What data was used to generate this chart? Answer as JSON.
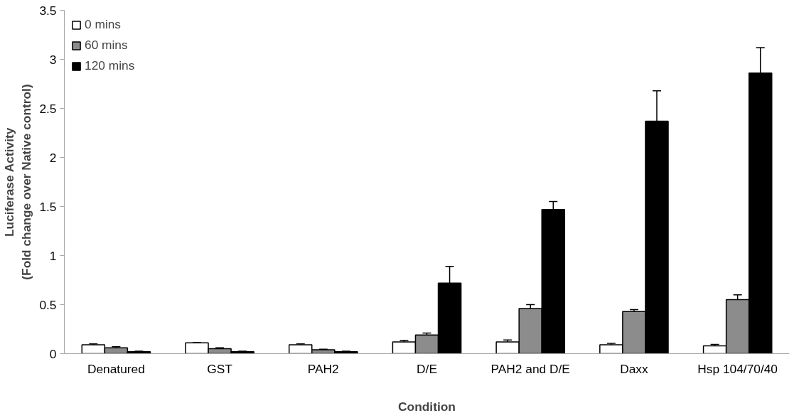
{
  "chart_data": {
    "type": "bar",
    "xlabel": "Condition",
    "ylabel": "Luciferase Activity\n(Fold change over Native control)",
    "categories": [
      "Denatured",
      "GST",
      "PAH2",
      "D/E",
      "PAH2 and D/E",
      "Daxx",
      "Hsp 104/70/40"
    ],
    "series": [
      {
        "name": "0 mins",
        "color": "#ffffff",
        "values": [
          0.09,
          0.11,
          0.09,
          0.12,
          0.12,
          0.09,
          0.08
        ],
        "errors": [
          0.01,
          0.005,
          0.01,
          0.015,
          0.02,
          0.015,
          0.015
        ]
      },
      {
        "name": "60 mins",
        "color": "#8c8c8c",
        "values": [
          0.06,
          0.05,
          0.04,
          0.19,
          0.46,
          0.43,
          0.55
        ],
        "errors": [
          0.01,
          0.01,
          0.005,
          0.02,
          0.04,
          0.02,
          0.05
        ]
      },
      {
        "name": "120 mins",
        "color": "#000000",
        "values": [
          0.02,
          0.02,
          0.02,
          0.72,
          1.47,
          2.37,
          2.86
        ],
        "errors": [
          0.005,
          0.005,
          0.005,
          0.17,
          0.08,
          0.31,
          0.26
        ]
      }
    ],
    "ylim": [
      0,
      3.5
    ],
    "yticks": [
      0,
      0.5,
      1,
      1.5,
      2,
      2.5,
      3,
      3.5
    ],
    "grid": false,
    "legend": "top left"
  }
}
